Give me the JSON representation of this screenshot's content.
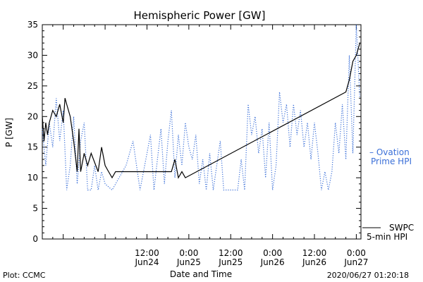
{
  "chart_data": {
    "type": "line",
    "title": "Hemispheric Power [GW]",
    "ylabel": "P [GW]",
    "xlabel": "Date and Time",
    "ylim": [
      0,
      35
    ],
    "yticks": [
      0,
      5,
      10,
      15,
      20,
      25,
      30,
      35
    ],
    "xlim": [
      "2020-06-23 06:00",
      "2020-06-27 01:20"
    ],
    "xticks": [
      {
        "x": "2020-06-24 12:00",
        "line1": "12:00",
        "line2": "Jun24"
      },
      {
        "x": "2020-06-25 00:00",
        "line1": "0:00",
        "line2": "Jun25"
      },
      {
        "x": "2020-06-25 12:00",
        "line1": "12:00",
        "line2": "Jun25"
      },
      {
        "x": "2020-06-26 00:00",
        "line1": "0:00",
        "line2": "Jun26"
      },
      {
        "x": "2020-06-26 12:00",
        "line1": "12:00",
        "line2": "Jun26"
      },
      {
        "x": "2020-06-27 00:00",
        "line1": "0:00",
        "line2": "Jun27"
      }
    ],
    "grid": false,
    "legend_position": "right",
    "colors": {
      "swpc": "#000000",
      "ovation": "#3a6fd8"
    },
    "series": [
      {
        "name": "SWPC 5-min HPI",
        "legend_lines": [
          "SWPC",
          "5-min HPI"
        ],
        "style": "solid",
        "points": [
          [
            "2020-06-23 06:00",
            20
          ],
          [
            "2020-06-23 06:30",
            16
          ],
          [
            "2020-06-23 07:00",
            19
          ],
          [
            "2020-06-23 07:30",
            17
          ],
          [
            "2020-06-23 08:00",
            19
          ],
          [
            "2020-06-23 09:00",
            21
          ],
          [
            "2020-06-23 10:00",
            20
          ],
          [
            "2020-06-23 11:00",
            22
          ],
          [
            "2020-06-23 12:00",
            19
          ],
          [
            "2020-06-23 12:30",
            23
          ],
          [
            "2020-06-23 13:00",
            22
          ],
          [
            "2020-06-23 14:00",
            20
          ],
          [
            "2020-06-23 15:00",
            16
          ],
          [
            "2020-06-23 16:00",
            11
          ],
          [
            "2020-06-23 16:30",
            18
          ],
          [
            "2020-06-23 17:00",
            11
          ],
          [
            "2020-06-23 18:00",
            14
          ],
          [
            "2020-06-23 19:00",
            12
          ],
          [
            "2020-06-23 20:00",
            14
          ],
          [
            "2020-06-23 22:00",
            11
          ],
          [
            "2020-06-23 23:00",
            15
          ],
          [
            "2020-06-24 00:00",
            12
          ],
          [
            "2020-06-24 01:00",
            11
          ],
          [
            "2020-06-24 02:00",
            10
          ],
          [
            "2020-06-24 03:00",
            11
          ],
          [
            "2020-06-24 05:00",
            11
          ],
          [
            "2020-06-24 07:00",
            11
          ],
          [
            "2020-06-24 09:00",
            11
          ],
          [
            "2020-06-24 11:00",
            11
          ],
          [
            "2020-06-24 13:00",
            11
          ],
          [
            "2020-06-24 15:00",
            11
          ],
          [
            "2020-06-24 17:00",
            11
          ],
          [
            "2020-06-24 19:00",
            11
          ],
          [
            "2020-06-24 20:00",
            13
          ],
          [
            "2020-06-24 21:00",
            10
          ],
          [
            "2020-06-24 22:00",
            11
          ],
          [
            "2020-06-24 23:00",
            10
          ],
          [
            "2020-06-26 21:00",
            24
          ],
          [
            "2020-06-26 22:00",
            26
          ],
          [
            "2020-06-26 23:00",
            29
          ],
          [
            "2020-06-27 00:00",
            30
          ],
          [
            "2020-06-27 01:00",
            32
          ]
        ]
      },
      {
        "name": "Ovation Prime HPI",
        "legend_lines": [
          "– Ovation",
          "Prime HPI"
        ],
        "style": "dotted",
        "points": [
          [
            "2020-06-23 06:00",
            18
          ],
          [
            "2020-06-23 07:00",
            12
          ],
          [
            "2020-06-23 08:00",
            19
          ],
          [
            "2020-06-23 09:00",
            15
          ],
          [
            "2020-06-23 10:00",
            23
          ],
          [
            "2020-06-23 11:00",
            16
          ],
          [
            "2020-06-23 12:00",
            21
          ],
          [
            "2020-06-23 13:00",
            8
          ],
          [
            "2020-06-23 14:00",
            12
          ],
          [
            "2020-06-23 15:00",
            20
          ],
          [
            "2020-06-23 16:00",
            9
          ],
          [
            "2020-06-23 17:00",
            16
          ],
          [
            "2020-06-23 18:00",
            19
          ],
          [
            "2020-06-23 19:00",
            8
          ],
          [
            "2020-06-23 20:00",
            8
          ],
          [
            "2020-06-23 21:00",
            12
          ],
          [
            "2020-06-23 22:00",
            8
          ],
          [
            "2020-06-23 23:00",
            11
          ],
          [
            "2020-06-24 00:00",
            9
          ],
          [
            "2020-06-24 02:00",
            8
          ],
          [
            "2020-06-24 04:00",
            10
          ],
          [
            "2020-06-24 06:00",
            12
          ],
          [
            "2020-06-24 08:00",
            16
          ],
          [
            "2020-06-24 10:00",
            8
          ],
          [
            "2020-06-24 12:00",
            14
          ],
          [
            "2020-06-24 13:00",
            17
          ],
          [
            "2020-06-24 14:00",
            8
          ],
          [
            "2020-06-24 15:00",
            13
          ],
          [
            "2020-06-24 16:00",
            18
          ],
          [
            "2020-06-24 17:00",
            9
          ],
          [
            "2020-06-24 18:00",
            16
          ],
          [
            "2020-06-24 19:00",
            21
          ],
          [
            "2020-06-24 20:00",
            10
          ],
          [
            "2020-06-24 21:00",
            17
          ],
          [
            "2020-06-24 22:00",
            12
          ],
          [
            "2020-06-24 23:00",
            19
          ],
          [
            "2020-06-25 00:00",
            15
          ],
          [
            "2020-06-25 01:00",
            13
          ],
          [
            "2020-06-25 02:00",
            17
          ],
          [
            "2020-06-25 03:00",
            9
          ],
          [
            "2020-06-25 04:00",
            13
          ],
          [
            "2020-06-25 05:00",
            8
          ],
          [
            "2020-06-25 06:00",
            14
          ],
          [
            "2020-06-25 07:00",
            8
          ],
          [
            "2020-06-25 08:00",
            12
          ],
          [
            "2020-06-25 09:00",
            16
          ],
          [
            "2020-06-25 10:00",
            8
          ],
          [
            "2020-06-25 12:00",
            8
          ],
          [
            "2020-06-25 14:00",
            8
          ],
          [
            "2020-06-25 15:00",
            13
          ],
          [
            "2020-06-25 16:00",
            8
          ],
          [
            "2020-06-25 17:00",
            22
          ],
          [
            "2020-06-25 18:00",
            17
          ],
          [
            "2020-06-25 19:00",
            20
          ],
          [
            "2020-06-25 20:00",
            14
          ],
          [
            "2020-06-25 21:00",
            18
          ],
          [
            "2020-06-25 22:00",
            10
          ],
          [
            "2020-06-25 23:00",
            19
          ],
          [
            "2020-06-26 00:00",
            8
          ],
          [
            "2020-06-26 01:00",
            12
          ],
          [
            "2020-06-26 02:00",
            24
          ],
          [
            "2020-06-26 03:00",
            19
          ],
          [
            "2020-06-26 04:00",
            22
          ],
          [
            "2020-06-26 05:00",
            15
          ],
          [
            "2020-06-26 06:00",
            22
          ],
          [
            "2020-06-26 07:00",
            17
          ],
          [
            "2020-06-26 08:00",
            21
          ],
          [
            "2020-06-26 09:00",
            15
          ],
          [
            "2020-06-26 10:00",
            19
          ],
          [
            "2020-06-26 11:00",
            13
          ],
          [
            "2020-06-26 12:00",
            19
          ],
          [
            "2020-06-26 13:00",
            14
          ],
          [
            "2020-06-26 14:00",
            8
          ],
          [
            "2020-06-26 15:00",
            11
          ],
          [
            "2020-06-26 16:00",
            8
          ],
          [
            "2020-06-26 17:00",
            11
          ],
          [
            "2020-06-26 18:00",
            19
          ],
          [
            "2020-06-26 19:00",
            14
          ],
          [
            "2020-06-26 20:00",
            22
          ],
          [
            "2020-06-26 21:00",
            13
          ],
          [
            "2020-06-26 22:00",
            30
          ],
          [
            "2020-06-26 23:00",
            14
          ],
          [
            "2020-06-27 00:00",
            35
          ],
          [
            "2020-06-27 01:00",
            23
          ]
        ]
      }
    ]
  },
  "footer": {
    "left": "Plot: CCMC",
    "right": "2020/06/27 01:20:18"
  }
}
